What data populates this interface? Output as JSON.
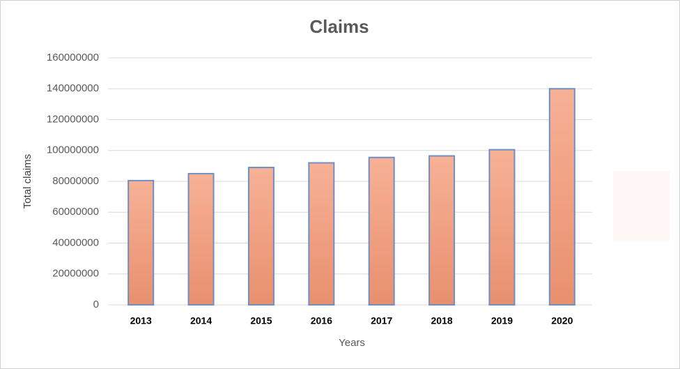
{
  "chart_data": {
    "type": "bar",
    "title": "Claims",
    "x_label": "Years",
    "y_label": "Total claims",
    "categories": [
      "2013",
      "2014",
      "2015",
      "2016",
      "2017",
      "2018",
      "2019",
      "2020"
    ],
    "values": [
      80500000,
      85000000,
      89000000,
      92000000,
      95500000,
      96500000,
      100500000,
      140000000
    ],
    "color": "#f4a582",
    "ylim": [
      0,
      160000000
    ],
    "yticks": [
      0,
      20000000,
      40000000,
      60000000,
      80000000,
      100000000,
      120000000,
      140000000,
      160000000
    ],
    "grid": true
  }
}
